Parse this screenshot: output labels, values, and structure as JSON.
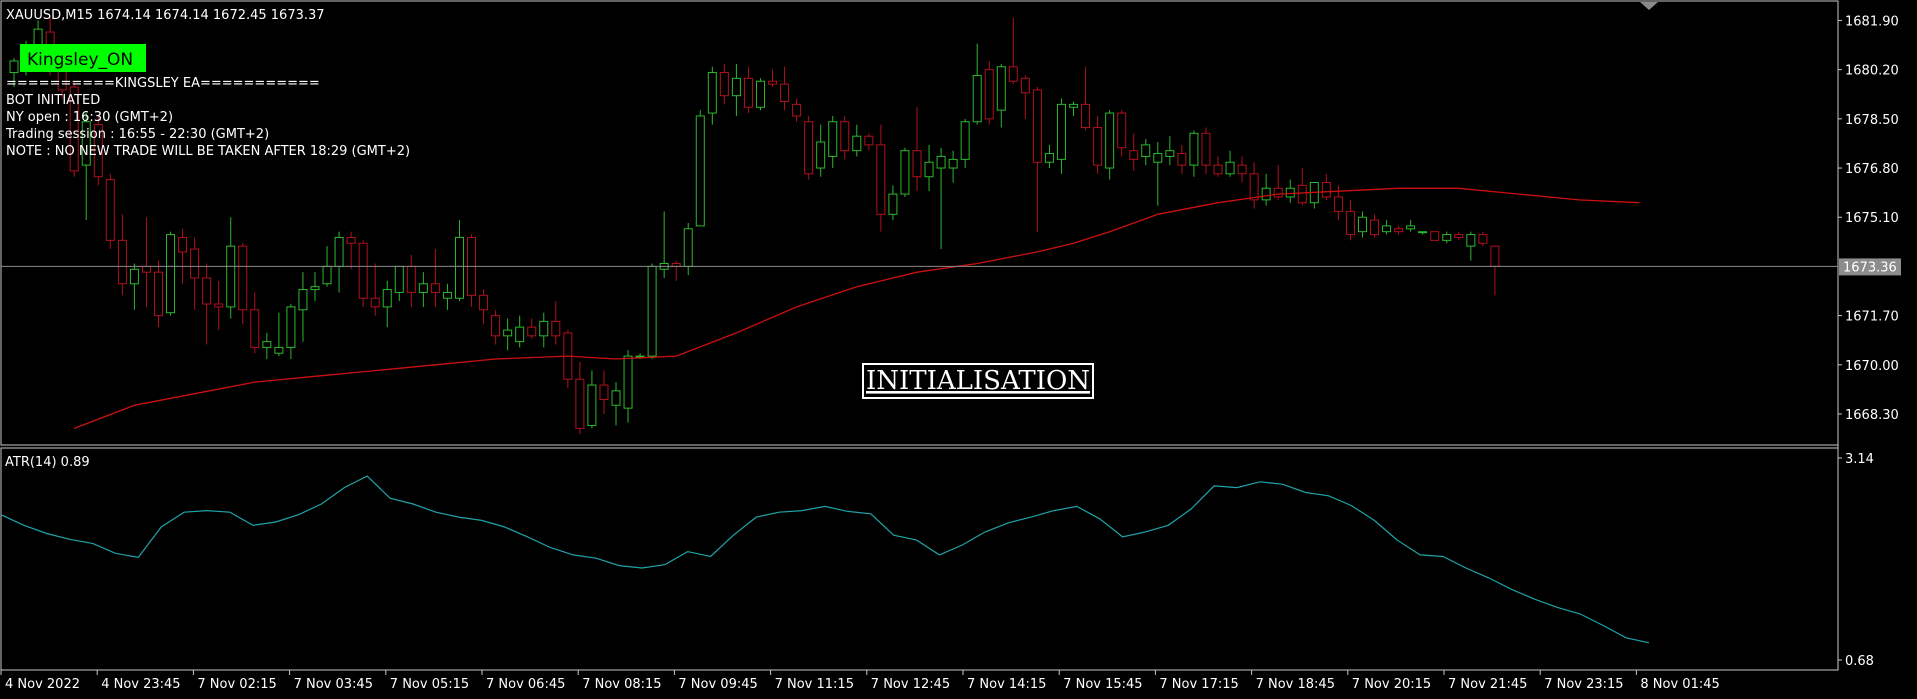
{
  "symbol_line": "XAUUSD,M15  1674.14 1674.14 1672.45 1673.37",
  "ea_badge": "Kingsley_ON",
  "ea_lines": [
    "==========KINGSLEY EA===========",
    "BOT INITIATED",
    "NY open : 16:30 (GMT+2)",
    "Trading session : 16:55 - 22:30 (GMT+2)",
    "NOTE : NO NEW TRADE WILL BE TAKEN AFTER 18:29 (GMT+2)"
  ],
  "status_box": "INITIALISATION",
  "colors": {
    "background": "#000000",
    "bull": "#2db82d",
    "bear": "#b0101e",
    "ma": "#cc1010",
    "atr": "#1fa3a8",
    "badge_bg": "#00ff00",
    "grid_axis": "#c8c8c8"
  },
  "chart_data": [
    {
      "type": "candlestick",
      "title": "XAUUSD,M15",
      "price_axis_ticks": [
        "1681.90",
        "1680.20",
        "1678.50",
        "1676.80",
        "1675.10",
        "1673.36",
        "1671.70",
        "1670.00",
        "1668.30"
      ],
      "current_price_label": "1673.36",
      "ylim": [
        1667.4,
        1682.4
      ],
      "time_labels": [
        "4 Nov 2022",
        "4 Nov 23:45",
        "7 Nov 02:15",
        "7 Nov 03:45",
        "7 Nov 05:15",
        "7 Nov 06:45",
        "7 Nov 08:15",
        "7 Nov 09:45",
        "7 Nov 11:15",
        "7 Nov 12:45",
        "7 Nov 14:15",
        "7 Nov 15:45",
        "7 Nov 17:15",
        "7 Nov 18:45",
        "7 Nov 20:15",
        "7 Nov 21:45",
        "7 Nov 23:15",
        "8 Nov 01:45"
      ],
      "candles": [
        {
          "o": 1680.1,
          "h": 1680.6,
          "l": 1679.6,
          "c": 1680.5
        },
        {
          "o": 1680.6,
          "h": 1681.2,
          "l": 1680.0,
          "c": 1680.8
        },
        {
          "o": 1680.8,
          "h": 1681.9,
          "l": 1680.4,
          "c": 1681.6
        },
        {
          "o": 1681.5,
          "h": 1682.0,
          "l": 1680.0,
          "c": 1680.8
        },
        {
          "o": 1680.7,
          "h": 1680.9,
          "l": 1679.2,
          "c": 1679.5
        },
        {
          "o": 1679.6,
          "h": 1679.8,
          "l": 1676.5,
          "c": 1676.7
        },
        {
          "o": 1676.9,
          "h": 1678.7,
          "l": 1675.0,
          "c": 1678.4
        },
        {
          "o": 1678.3,
          "h": 1678.6,
          "l": 1676.2,
          "c": 1676.5
        },
        {
          "o": 1676.4,
          "h": 1676.6,
          "l": 1674.0,
          "c": 1674.3
        },
        {
          "o": 1674.3,
          "h": 1675.2,
          "l": 1672.4,
          "c": 1672.8
        },
        {
          "o": 1672.8,
          "h": 1673.5,
          "l": 1671.9,
          "c": 1673.3
        },
        {
          "o": 1673.4,
          "h": 1675.1,
          "l": 1672.0,
          "c": 1673.2
        },
        {
          "o": 1673.2,
          "h": 1673.6,
          "l": 1671.3,
          "c": 1671.7
        },
        {
          "o": 1671.8,
          "h": 1674.6,
          "l": 1671.7,
          "c": 1674.5
        },
        {
          "o": 1674.4,
          "h": 1674.7,
          "l": 1672.8,
          "c": 1673.9
        },
        {
          "o": 1674.0,
          "h": 1674.4,
          "l": 1671.9,
          "c": 1673.0
        },
        {
          "o": 1673.0,
          "h": 1673.5,
          "l": 1670.7,
          "c": 1672.1
        },
        {
          "o": 1672.1,
          "h": 1672.9,
          "l": 1671.2,
          "c": 1672.0
        },
        {
          "o": 1672.0,
          "h": 1675.1,
          "l": 1671.6,
          "c": 1674.1
        },
        {
          "o": 1674.1,
          "h": 1674.2,
          "l": 1671.4,
          "c": 1671.9
        },
        {
          "o": 1671.9,
          "h": 1672.5,
          "l": 1670.4,
          "c": 1670.6
        },
        {
          "o": 1670.6,
          "h": 1671.1,
          "l": 1670.2,
          "c": 1670.8
        },
        {
          "o": 1670.4,
          "h": 1671.8,
          "l": 1670.3,
          "c": 1670.6
        },
        {
          "o": 1670.6,
          "h": 1672.1,
          "l": 1670.2,
          "c": 1672.0
        },
        {
          "o": 1671.9,
          "h": 1673.2,
          "l": 1670.8,
          "c": 1672.6
        },
        {
          "o": 1672.6,
          "h": 1673.2,
          "l": 1672.2,
          "c": 1672.7
        },
        {
          "o": 1672.8,
          "h": 1674.1,
          "l": 1672.7,
          "c": 1673.4
        },
        {
          "o": 1673.4,
          "h": 1674.6,
          "l": 1672.5,
          "c": 1674.4
        },
        {
          "o": 1674.4,
          "h": 1674.6,
          "l": 1673.3,
          "c": 1674.2
        },
        {
          "o": 1674.2,
          "h": 1674.3,
          "l": 1672.0,
          "c": 1672.3
        },
        {
          "o": 1672.3,
          "h": 1673.5,
          "l": 1671.7,
          "c": 1672.0
        },
        {
          "o": 1672.0,
          "h": 1672.9,
          "l": 1671.3,
          "c": 1672.6
        },
        {
          "o": 1672.5,
          "h": 1673.4,
          "l": 1672.2,
          "c": 1673.4
        },
        {
          "o": 1673.4,
          "h": 1673.8,
          "l": 1672.0,
          "c": 1672.5
        },
        {
          "o": 1672.5,
          "h": 1673.2,
          "l": 1672.0,
          "c": 1672.8
        },
        {
          "o": 1672.8,
          "h": 1674.0,
          "l": 1672.0,
          "c": 1672.5
        },
        {
          "o": 1672.3,
          "h": 1672.8,
          "l": 1671.9,
          "c": 1672.5
        },
        {
          "o": 1672.3,
          "h": 1675.0,
          "l": 1672.2,
          "c": 1674.4
        },
        {
          "o": 1674.4,
          "h": 1674.5,
          "l": 1672.0,
          "c": 1672.4
        },
        {
          "o": 1672.4,
          "h": 1672.6,
          "l": 1671.4,
          "c": 1671.9
        },
        {
          "o": 1671.7,
          "h": 1671.9,
          "l": 1670.7,
          "c": 1671.0
        },
        {
          "o": 1671.0,
          "h": 1671.6,
          "l": 1670.5,
          "c": 1671.2
        },
        {
          "o": 1670.8,
          "h": 1671.7,
          "l": 1670.6,
          "c": 1671.3
        },
        {
          "o": 1671.3,
          "h": 1671.6,
          "l": 1670.9,
          "c": 1671.0
        },
        {
          "o": 1671.0,
          "h": 1671.8,
          "l": 1670.6,
          "c": 1671.5
        },
        {
          "o": 1671.5,
          "h": 1672.2,
          "l": 1670.7,
          "c": 1671.0
        },
        {
          "o": 1671.1,
          "h": 1671.2,
          "l": 1669.2,
          "c": 1669.5
        },
        {
          "o": 1669.5,
          "h": 1670.1,
          "l": 1667.6,
          "c": 1667.8
        },
        {
          "o": 1667.9,
          "h": 1669.8,
          "l": 1667.8,
          "c": 1669.3
        },
        {
          "o": 1669.3,
          "h": 1669.8,
          "l": 1668.3,
          "c": 1668.8
        },
        {
          "o": 1668.6,
          "h": 1669.4,
          "l": 1667.9,
          "c": 1669.1
        },
        {
          "o": 1668.5,
          "h": 1670.5,
          "l": 1668.0,
          "c": 1670.3
        },
        {
          "o": 1670.3,
          "h": 1670.4,
          "l": 1670.2,
          "c": 1670.3
        },
        {
          "o": 1670.3,
          "h": 1673.5,
          "l": 1670.2,
          "c": 1673.4
        },
        {
          "o": 1673.3,
          "h": 1675.3,
          "l": 1673.0,
          "c": 1673.5
        },
        {
          "o": 1673.5,
          "h": 1673.6,
          "l": 1672.9,
          "c": 1673.4
        },
        {
          "o": 1673.4,
          "h": 1674.9,
          "l": 1673.1,
          "c": 1674.7
        },
        {
          "o": 1674.8,
          "h": 1678.8,
          "l": 1674.8,
          "c": 1678.6
        },
        {
          "o": 1678.7,
          "h": 1680.3,
          "l": 1678.3,
          "c": 1680.1
        },
        {
          "o": 1680.1,
          "h": 1680.4,
          "l": 1679.0,
          "c": 1679.3
        },
        {
          "o": 1679.3,
          "h": 1680.4,
          "l": 1678.6,
          "c": 1679.9
        },
        {
          "o": 1679.9,
          "h": 1680.3,
          "l": 1678.7,
          "c": 1678.9
        },
        {
          "o": 1678.9,
          "h": 1679.9,
          "l": 1678.8,
          "c": 1679.8
        },
        {
          "o": 1679.8,
          "h": 1680.2,
          "l": 1679.6,
          "c": 1679.7
        },
        {
          "o": 1679.7,
          "h": 1680.3,
          "l": 1678.8,
          "c": 1679.1
        },
        {
          "o": 1679.0,
          "h": 1679.2,
          "l": 1678.4,
          "c": 1678.6
        },
        {
          "o": 1678.4,
          "h": 1678.6,
          "l": 1676.4,
          "c": 1676.6
        },
        {
          "o": 1676.8,
          "h": 1678.3,
          "l": 1676.5,
          "c": 1677.7
        },
        {
          "o": 1677.2,
          "h": 1678.6,
          "l": 1676.8,
          "c": 1678.4
        },
        {
          "o": 1678.4,
          "h": 1678.6,
          "l": 1677.1,
          "c": 1677.4
        },
        {
          "o": 1677.4,
          "h": 1678.3,
          "l": 1677.2,
          "c": 1677.9
        },
        {
          "o": 1677.9,
          "h": 1678.0,
          "l": 1677.4,
          "c": 1677.6
        },
        {
          "o": 1677.6,
          "h": 1678.3,
          "l": 1674.6,
          "c": 1675.2
        },
        {
          "o": 1675.2,
          "h": 1676.2,
          "l": 1675.0,
          "c": 1675.9
        },
        {
          "o": 1675.9,
          "h": 1677.5,
          "l": 1675.8,
          "c": 1677.4
        },
        {
          "o": 1677.4,
          "h": 1678.9,
          "l": 1676.0,
          "c": 1676.5
        },
        {
          "o": 1676.5,
          "h": 1677.6,
          "l": 1676.0,
          "c": 1677.0
        },
        {
          "o": 1676.8,
          "h": 1677.5,
          "l": 1674.0,
          "c": 1677.2
        },
        {
          "o": 1676.8,
          "h": 1677.4,
          "l": 1676.3,
          "c": 1677.1
        },
        {
          "o": 1677.1,
          "h": 1678.5,
          "l": 1676.8,
          "c": 1678.4
        },
        {
          "o": 1678.4,
          "h": 1681.1,
          "l": 1678.3,
          "c": 1680.0
        },
        {
          "o": 1680.2,
          "h": 1680.5,
          "l": 1678.3,
          "c": 1678.5
        },
        {
          "o": 1678.8,
          "h": 1680.4,
          "l": 1678.2,
          "c": 1680.3
        },
        {
          "o": 1680.3,
          "h": 1682.0,
          "l": 1679.7,
          "c": 1679.8
        },
        {
          "o": 1679.9,
          "h": 1680.0,
          "l": 1678.5,
          "c": 1679.4
        },
        {
          "o": 1679.5,
          "h": 1679.6,
          "l": 1674.6,
          "c": 1677.0
        },
        {
          "o": 1677.0,
          "h": 1677.6,
          "l": 1676.8,
          "c": 1677.3
        },
        {
          "o": 1677.1,
          "h": 1679.2,
          "l": 1676.6,
          "c": 1679.0
        },
        {
          "o": 1678.9,
          "h": 1679.1,
          "l": 1678.6,
          "c": 1679.0
        },
        {
          "o": 1679.0,
          "h": 1680.3,
          "l": 1678.1,
          "c": 1678.2
        },
        {
          "o": 1678.2,
          "h": 1678.6,
          "l": 1676.6,
          "c": 1676.9
        },
        {
          "o": 1676.8,
          "h": 1678.8,
          "l": 1676.4,
          "c": 1678.7
        },
        {
          "o": 1678.7,
          "h": 1678.8,
          "l": 1677.2,
          "c": 1677.5
        },
        {
          "o": 1677.4,
          "h": 1678.0,
          "l": 1676.7,
          "c": 1677.1
        },
        {
          "o": 1677.2,
          "h": 1677.8,
          "l": 1676.9,
          "c": 1677.6
        },
        {
          "o": 1677.0,
          "h": 1677.7,
          "l": 1675.5,
          "c": 1677.3
        },
        {
          "o": 1677.2,
          "h": 1677.9,
          "l": 1676.9,
          "c": 1677.4
        },
        {
          "o": 1677.3,
          "h": 1677.6,
          "l": 1676.6,
          "c": 1676.9
        },
        {
          "o": 1676.9,
          "h": 1678.1,
          "l": 1676.5,
          "c": 1678.0
        },
        {
          "o": 1678.0,
          "h": 1678.2,
          "l": 1676.6,
          "c": 1676.9
        },
        {
          "o": 1676.9,
          "h": 1677.2,
          "l": 1676.5,
          "c": 1676.6
        },
        {
          "o": 1676.6,
          "h": 1677.4,
          "l": 1676.5,
          "c": 1677.0
        },
        {
          "o": 1676.9,
          "h": 1677.2,
          "l": 1676.3,
          "c": 1676.6
        },
        {
          "o": 1676.6,
          "h": 1677.0,
          "l": 1675.4,
          "c": 1675.7
        },
        {
          "o": 1675.7,
          "h": 1676.6,
          "l": 1675.5,
          "c": 1676.1
        },
        {
          "o": 1676.1,
          "h": 1676.9,
          "l": 1675.7,
          "c": 1675.8
        },
        {
          "o": 1675.8,
          "h": 1676.4,
          "l": 1675.6,
          "c": 1676.1
        },
        {
          "o": 1676.2,
          "h": 1676.8,
          "l": 1675.5,
          "c": 1675.6
        },
        {
          "o": 1675.6,
          "h": 1676.3,
          "l": 1675.4,
          "c": 1676.3
        },
        {
          "o": 1676.3,
          "h": 1676.6,
          "l": 1675.7,
          "c": 1675.8
        },
        {
          "o": 1675.8,
          "h": 1676.2,
          "l": 1675.0,
          "c": 1675.3
        },
        {
          "o": 1675.3,
          "h": 1675.7,
          "l": 1674.3,
          "c": 1674.5
        },
        {
          "o": 1674.6,
          "h": 1675.3,
          "l": 1674.4,
          "c": 1675.1
        },
        {
          "o": 1675.0,
          "h": 1675.2,
          "l": 1674.4,
          "c": 1674.5
        },
        {
          "o": 1674.6,
          "h": 1675.0,
          "l": 1674.5,
          "c": 1674.8
        },
        {
          "o": 1674.7,
          "h": 1674.8,
          "l": 1674.5,
          "c": 1674.6
        },
        {
          "o": 1674.7,
          "h": 1675.0,
          "l": 1674.6,
          "c": 1674.8
        },
        {
          "o": 1674.6,
          "h": 1674.6,
          "l": 1674.5,
          "c": 1674.6
        },
        {
          "o": 1674.6,
          "h": 1674.6,
          "l": 1674.3,
          "c": 1674.3
        },
        {
          "o": 1674.3,
          "h": 1674.6,
          "l": 1674.2,
          "c": 1674.5
        },
        {
          "o": 1674.5,
          "h": 1674.6,
          "l": 1674.3,
          "c": 1674.4
        },
        {
          "o": 1674.1,
          "h": 1674.6,
          "l": 1673.6,
          "c": 1674.5
        },
        {
          "o": 1674.5,
          "h": 1674.6,
          "l": 1674.1,
          "c": 1674.2
        },
        {
          "o": 1674.1,
          "h": 1674.1,
          "l": 1672.4,
          "c": 1673.4
        }
      ],
      "ma_series": [
        {
          "i": 5,
          "v": 1667.8
        },
        {
          "i": 10,
          "v": 1668.6
        },
        {
          "i": 15,
          "v": 1669.0
        },
        {
          "i": 20,
          "v": 1669.4
        },
        {
          "i": 25,
          "v": 1669.6
        },
        {
          "i": 30,
          "v": 1669.8
        },
        {
          "i": 35,
          "v": 1670.0
        },
        {
          "i": 40,
          "v": 1670.2
        },
        {
          "i": 46,
          "v": 1670.3
        },
        {
          "i": 50,
          "v": 1670.2
        },
        {
          "i": 55,
          "v": 1670.3
        },
        {
          "i": 60,
          "v": 1671.1
        },
        {
          "i": 65,
          "v": 1672.0
        },
        {
          "i": 70,
          "v": 1672.7
        },
        {
          "i": 75,
          "v": 1673.2
        },
        {
          "i": 80,
          "v": 1673.5
        },
        {
          "i": 85,
          "v": 1673.9
        },
        {
          "i": 88,
          "v": 1674.2
        },
        {
          "i": 91,
          "v": 1674.6
        },
        {
          "i": 95,
          "v": 1675.2
        },
        {
          "i": 100,
          "v": 1675.6
        },
        {
          "i": 105,
          "v": 1675.9
        },
        {
          "i": 110,
          "v": 1676.0
        },
        {
          "i": 115,
          "v": 1676.1
        },
        {
          "i": 120,
          "v": 1676.1
        },
        {
          "i": 125,
          "v": 1675.9
        },
        {
          "i": 130,
          "v": 1675.7
        },
        {
          "i": 135,
          "v": 1675.6
        }
      ]
    },
    {
      "type": "line",
      "title": "ATR(14) 0.89",
      "ticks": [
        "3.14",
        "0.68"
      ],
      "ylim": [
        0.68,
        3.14
      ],
      "values": [
        2.45,
        2.32,
        2.22,
        2.15,
        2.1,
        1.98,
        1.93,
        2.3,
        2.48,
        2.5,
        2.48,
        2.32,
        2.36,
        2.45,
        2.58,
        2.78,
        2.92,
        2.65,
        2.58,
        2.48,
        2.42,
        2.38,
        2.3,
        2.18,
        2.05,
        1.96,
        1.92,
        1.83,
        1.8,
        1.84,
        2.0,
        1.94,
        2.2,
        2.42,
        2.48,
        2.5,
        2.55,
        2.49,
        2.46,
        2.2,
        2.14,
        1.96,
        2.08,
        2.24,
        2.35,
        2.42,
        2.5,
        2.55,
        2.4,
        2.18,
        2.24,
        2.32,
        2.52,
        2.8,
        2.78,
        2.85,
        2.82,
        2.72,
        2.68,
        2.56,
        2.38,
        2.14,
        1.96,
        1.94,
        1.8,
        1.68,
        1.54,
        1.42,
        1.32,
        1.24,
        1.1,
        0.95,
        0.89
      ]
    }
  ]
}
